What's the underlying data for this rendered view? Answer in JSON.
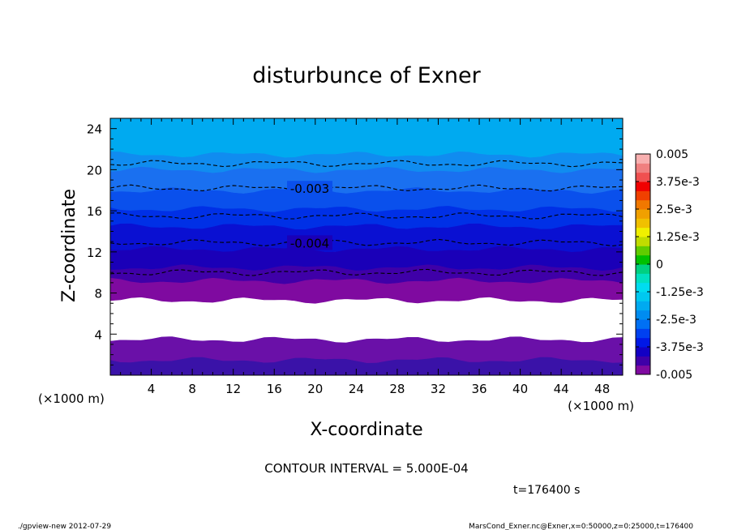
{
  "chart_data": {
    "type": "heatmap",
    "title": "disturbunce of Exner",
    "xlabel": "X-coordinate",
    "ylabel": "Z-coordinate",
    "x_unit": "(×1000 m)",
    "y_unit": "(×1000 m)",
    "xlim": [
      0,
      50
    ],
    "ylim": [
      0,
      25
    ],
    "x_ticks": [
      4,
      8,
      12,
      16,
      20,
      24,
      28,
      32,
      36,
      40,
      44,
      48
    ],
    "y_ticks": [
      4,
      8,
      12,
      16,
      20,
      24
    ],
    "colorbar": {
      "range": [
        -0.005,
        0.005
      ],
      "tick_labels": [
        "0.005",
        "3.75e-3",
        "2.5e-3",
        "1.25e-3",
        "0",
        "-1.25e-3",
        "-2.5e-3",
        "-3.75e-3",
        "-0.005"
      ],
      "colors": [
        "#7f0aa0",
        "#3f00a8",
        "#1200c4",
        "#0018e6",
        "#0040f0",
        "#0070f4",
        "#008cf0",
        "#00aaf0",
        "#00c8f0",
        "#00dcf0",
        "#00e0c0",
        "#00d080",
        "#00c000",
        "#60cc00",
        "#c0dc00",
        "#f0f000",
        "#f0c000",
        "#f0a000",
        "#f07800",
        "#f04000",
        "#f00000",
        "#f05050",
        "#f08080",
        "#f8b0b0"
      ]
    },
    "layers": [
      {
        "z_bottom": 0.0,
        "z_top": 1.5,
        "color": "#3a12a8"
      },
      {
        "z_bottom": 1.5,
        "z_top": 3.5,
        "color": "#6a10a8"
      },
      {
        "z_bottom": 3.5,
        "z_top": 7.3,
        "color": "#ffffff"
      },
      {
        "z_bottom": 7.3,
        "z_top": 9.2,
        "color": "#7f0aa0"
      },
      {
        "z_bottom": 9.2,
        "z_top": 10.5,
        "color": "#3f00a8"
      },
      {
        "z_bottom": 10.5,
        "z_top": 12.3,
        "color": "#1a00b8"
      },
      {
        "z_bottom": 12.3,
        "z_top": 14.5,
        "color": "#0a10d2"
      },
      {
        "z_bottom": 14.5,
        "z_top": 16.2,
        "color": "#0030e6"
      },
      {
        "z_bottom": 16.2,
        "z_top": 18.0,
        "color": "#0a50ec"
      },
      {
        "z_bottom": 18.0,
        "z_top": 20.0,
        "color": "#1a70f0"
      },
      {
        "z_bottom": 20.0,
        "z_top": 21.5,
        "color": "#108cf0"
      },
      {
        "z_bottom": 21.5,
        "z_top": 25.0,
        "color": "#00aaf0"
      }
    ],
    "contours": [
      {
        "level": "-0.003",
        "z": 18.2,
        "label": "-0.003"
      },
      {
        "level": "-0.004",
        "z": 12.9,
        "label": "-0.004"
      },
      {
        "level": "",
        "z": 20.6,
        "label": ""
      },
      {
        "level": "",
        "z": 15.5,
        "label": ""
      },
      {
        "level": "",
        "z": 10.0,
        "label": ""
      }
    ],
    "contour_interval_text": "CONTOUR INTERVAL = 5.000E-04",
    "time_text": "t=176400 s"
  },
  "footer": {
    "left": "./gpview-new  2012-07-29",
    "right": "MarsCond_Exner.nc@Exner,x=0:50000,z=0:25000,t=176400"
  }
}
